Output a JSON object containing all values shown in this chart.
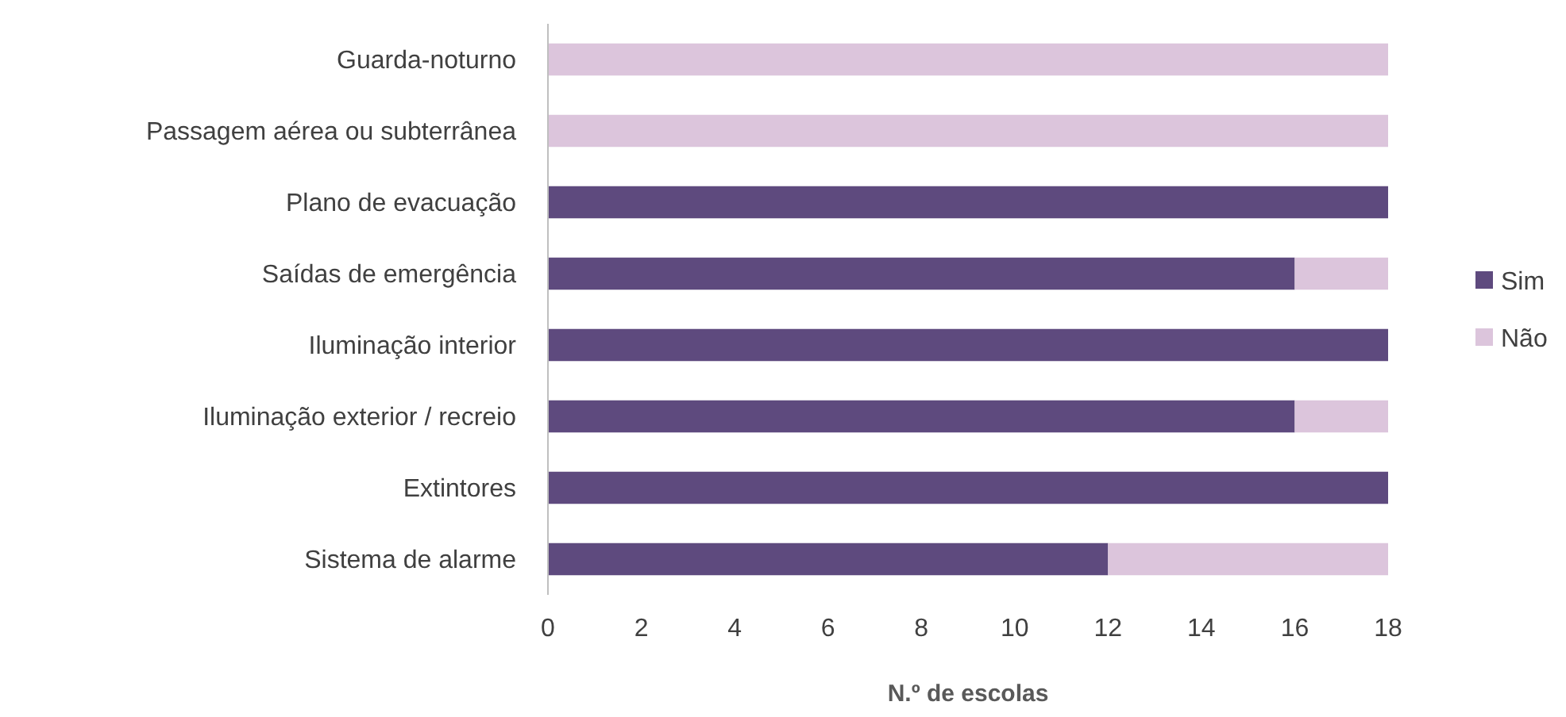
{
  "chart_data": {
    "type": "bar",
    "orientation": "horizontal",
    "stacked": true,
    "xlabel": "N.º de escolas",
    "categories": [
      "Guarda-noturno",
      "Passagem aérea ou subterrânea",
      "Plano de evacuação",
      "Saídas de emergência",
      "Iluminação interior",
      "Iluminação exterior / recreio",
      "Extintores",
      "Sistema de alarme"
    ],
    "series": [
      {
        "name": "Sim",
        "color": "#5e4a7e",
        "values": [
          0,
          0,
          18,
          16,
          18,
          16,
          18,
          12
        ]
      },
      {
        "name": "Não",
        "color": "#dcc5dc",
        "values": [
          18,
          18,
          0,
          2,
          0,
          2,
          0,
          6
        ]
      }
    ],
    "xlim": [
      0,
      18
    ],
    "xticks": [
      0,
      2,
      4,
      6,
      8,
      10,
      12,
      14,
      16,
      18
    ],
    "legend": "right",
    "grid": false
  }
}
